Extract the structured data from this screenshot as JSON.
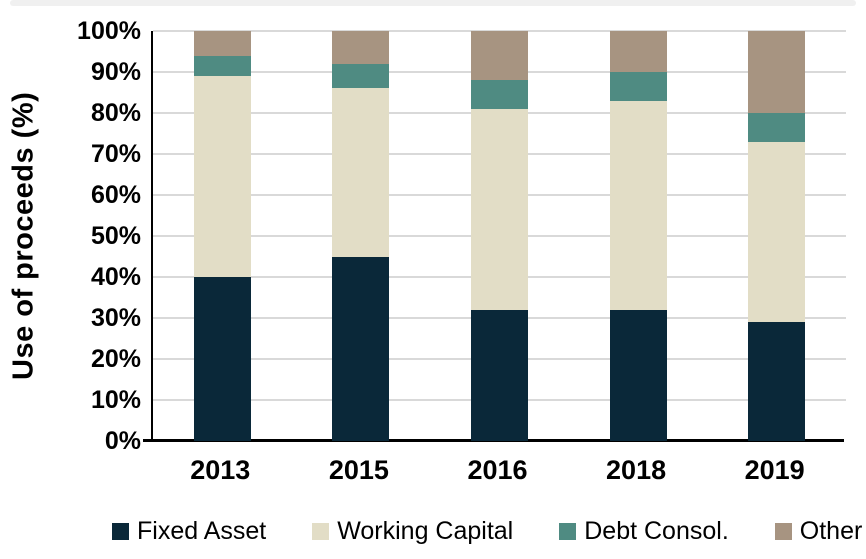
{
  "chart_data": {
    "type": "bar",
    "stacked": true,
    "title": "",
    "xlabel": "",
    "ylabel": "Use of proceeds (%)",
    "categories": [
      "2013",
      "2015",
      "2016",
      "2018",
      "2019"
    ],
    "series": [
      {
        "name": "Fixed Asset",
        "color": "#0a2839",
        "values": [
          40,
          45,
          32,
          32,
          29
        ]
      },
      {
        "name": "Working Capital",
        "color": "#e2ddc6",
        "values": [
          49,
          41,
          49,
          51,
          44
        ]
      },
      {
        "name": "Debt Consol.",
        "color": "#4f8b82",
        "values": [
          5,
          6,
          7,
          7,
          7
        ]
      },
      {
        "name": "Other",
        "color": "#a79481",
        "values": [
          6,
          8,
          12,
          10,
          20
        ]
      }
    ],
    "ylim": [
      0,
      100
    ],
    "ytick_step": 10,
    "ytick_labels": [
      "0%",
      "10%",
      "20%",
      "30%",
      "40%",
      "50%",
      "60%",
      "70%",
      "80%",
      "90%",
      "100%"
    ],
    "grid": true,
    "legend_position": "bottom"
  },
  "colors": {
    "gridline": "#d9d9d9",
    "axis_line": "#000000",
    "text": "#000000",
    "top_strip": "#f0f0f0"
  }
}
